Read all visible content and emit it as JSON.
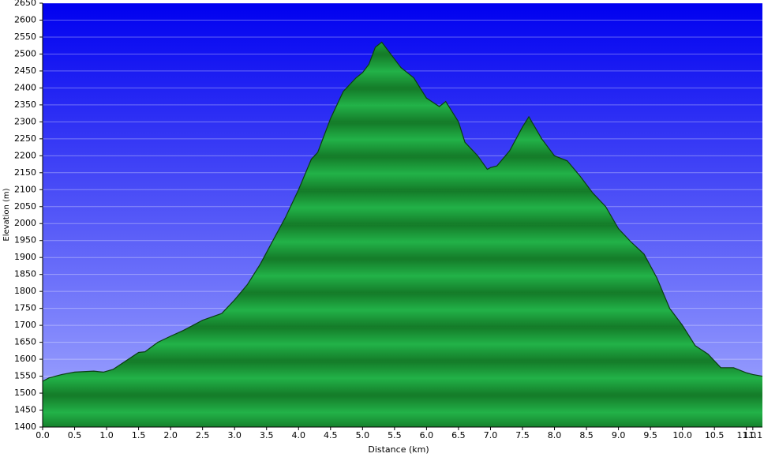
{
  "chart_data": {
    "type": "area",
    "xlabel": "Distance   (km)",
    "ylabel": "Elevation (m)",
    "x": [
      0,
      0.1,
      0.3,
      0.5,
      0.8,
      0.95,
      1.1,
      1.3,
      1.5,
      1.6,
      1.8,
      2.0,
      2.2,
      2.5,
      2.8,
      3.0,
      3.2,
      3.4,
      3.6,
      3.8,
      4.0,
      4.2,
      4.3,
      4.5,
      4.7,
      4.9,
      5.0,
      5.1,
      5.2,
      5.3,
      5.4,
      5.6,
      5.8,
      6.0,
      6.2,
      6.3,
      6.5,
      6.6,
      6.8,
      6.95,
      7.0,
      7.1,
      7.3,
      7.5,
      7.6,
      7.8,
      8.0,
      8.2,
      8.4,
      8.6,
      8.8,
      9.0,
      9.2,
      9.4,
      9.6,
      9.8,
      10.0,
      10.2,
      10.4,
      10.6,
      10.8,
      11.0,
      11.1,
      11.25
    ],
    "values": [
      1535,
      1545,
      1555,
      1562,
      1565,
      1562,
      1570,
      1595,
      1620,
      1622,
      1650,
      1668,
      1685,
      1715,
      1735,
      1775,
      1820,
      1880,
      1950,
      2020,
      2100,
      2190,
      2210,
      2310,
      2390,
      2430,
      2445,
      2470,
      2520,
      2535,
      2510,
      2460,
      2430,
      2370,
      2345,
      2360,
      2300,
      2240,
      2200,
      2160,
      2165,
      2170,
      2215,
      2285,
      2315,
      2250,
      2200,
      2185,
      2140,
      2090,
      2050,
      1985,
      1945,
      1910,
      1840,
      1750,
      1700,
      1640,
      1615,
      1575,
      1575,
      1560,
      1555,
      1550
    ],
    "color": "#1fa83a",
    "xlim": [
      0,
      11.25
    ],
    "xticks": [
      {
        "value": 0,
        "label": "0.0"
      },
      0.5,
      {
        "value": 1,
        "label": "1.0"
      },
      1.5,
      {
        "value": 2,
        "label": "2.0"
      },
      2.5,
      {
        "value": 3,
        "label": "3.0"
      },
      3.5,
      {
        "value": 4,
        "label": "4.0"
      },
      4.5,
      {
        "value": 5,
        "label": "5.0"
      },
      5.5,
      {
        "value": 6,
        "label": "6.0"
      },
      6.5,
      {
        "value": 7,
        "label": "7.0"
      },
      7.5,
      {
        "value": 8,
        "label": "8.0"
      },
      8.5,
      {
        "value": 9,
        "label": "9.0"
      },
      9.5,
      {
        "value": 10,
        "label": "10.0"
      },
      10.5,
      {
        "value": 11,
        "label": "11.0"
      },
      11.1
    ],
    "ylim": [
      1400,
      2650
    ],
    "yticks": [
      1400,
      1450,
      1500,
      1550,
      1600,
      1650,
      1700,
      1750,
      1800,
      1850,
      1900,
      1950,
      2000,
      2050,
      2100,
      2150,
      2200,
      2250,
      2300,
      2350,
      2400,
      2450,
      2500,
      2550,
      2600,
      2650
    ],
    "grid": true
  }
}
